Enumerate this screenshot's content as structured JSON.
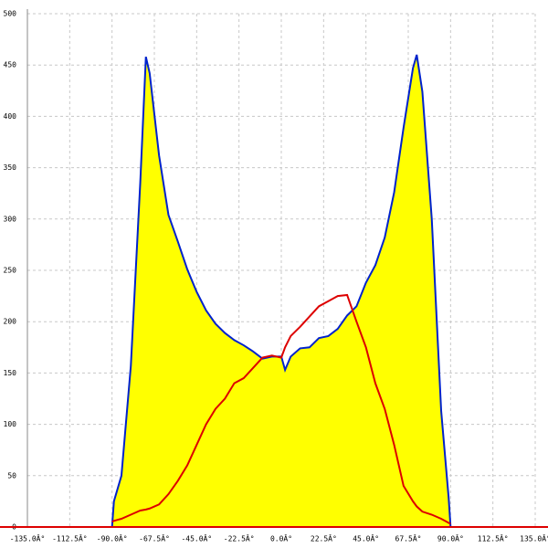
{
  "chart_data": {
    "type": "area",
    "grid": true,
    "x": [
      -90,
      -89,
      -85,
      -80,
      -75,
      -72,
      -70,
      -65,
      -60,
      -55,
      -50,
      -45,
      -40,
      -35,
      -30,
      -25,
      -20,
      -15,
      -10,
      -5,
      0,
      2,
      5,
      10,
      15,
      20,
      25,
      30,
      35,
      40,
      45,
      50,
      55,
      60,
      65,
      70,
      72,
      75,
      80,
      85,
      89,
      90
    ],
    "series": [
      {
        "type": "area",
        "color": "#0022cc",
        "fill": "#ffff00",
        "values": [
          0,
          25,
          50,
          157,
          335,
          458,
          442,
          362,
          304,
          278,
          251,
          229,
          211,
          198,
          189,
          182,
          177,
          171,
          164,
          166,
          166,
          153,
          166,
          174,
          175,
          184,
          186,
          193,
          206,
          215,
          238,
          255,
          282,
          326,
          389,
          447,
          460,
          424,
          300,
          113,
          28,
          0
        ]
      },
      {
        "type": "line",
        "color": "#dd0000",
        "values": [
          5,
          6,
          8,
          12,
          16,
          17,
          18,
          22,
          32,
          45,
          60,
          80,
          100,
          115,
          125,
          140,
          145,
          155,
          165,
          167,
          165,
          175,
          186,
          195,
          205,
          215,
          220,
          225,
          226,
          200,
          175,
          140,
          115,
          80,
          40,
          25,
          20,
          15,
          12,
          8,
          4,
          3
        ]
      }
    ],
    "xlim": [
      -135,
      135
    ],
    "ylim": [
      0,
      500
    ],
    "xticks": [
      {
        "value": -135,
        "label": "-135.0Â°"
      },
      {
        "value": -112.5,
        "label": "-112.5Â°"
      },
      {
        "value": -90,
        "label": "-90.0Â°"
      },
      {
        "value": -67.5,
        "label": "-67.5Â°"
      },
      {
        "value": -45,
        "label": "-45.0Â°"
      },
      {
        "value": -22.5,
        "label": "-22.5Â°"
      },
      {
        "value": 0,
        "label": "0.0Â°"
      },
      {
        "value": 22.5,
        "label": "22.5Â°"
      },
      {
        "value": 45,
        "label": "45.0Â°"
      },
      {
        "value": 67.5,
        "label": "67.5Â°"
      },
      {
        "value": 90,
        "label": "90.0Â°"
      },
      {
        "value": 112.5,
        "label": "112.5Â°"
      },
      {
        "value": 135,
        "label": "135.0Â°"
      }
    ],
    "yticks": [
      0,
      50,
      100,
      150,
      200,
      250,
      300,
      350,
      400,
      450,
      500
    ]
  }
}
